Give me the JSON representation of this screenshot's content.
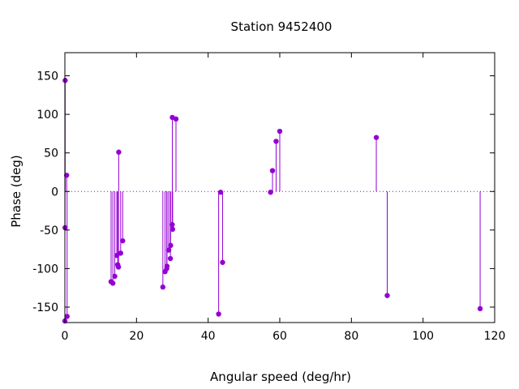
{
  "chart_data": {
    "type": "scatter",
    "style": "impulses-with-points",
    "title": "Station 9452400",
    "xlabel": "Angular speed (deg/hr)",
    "ylabel": "Phase (deg)",
    "xlim": [
      0,
      120
    ],
    "ylim": [
      -170,
      180
    ],
    "xticks": [
      0,
      20,
      40,
      60,
      80,
      100,
      120
    ],
    "yticks": [
      -150,
      -100,
      -50,
      0,
      50,
      100,
      150
    ],
    "xtick_labels": [
      "0",
      "20",
      "40",
      "60",
      "80",
      "100",
      "120"
    ],
    "ytick_labels": [
      "-150",
      "-100",
      "-50",
      "0",
      "50",
      "100",
      "150"
    ],
    "grid": false,
    "zero_line": true,
    "color": "#9400d3",
    "points": [
      {
        "x": 0.0,
        "y": -168
      },
      {
        "x": 0.04,
        "y": -47
      },
      {
        "x": 0.08,
        "y": 144
      },
      {
        "x": 0.5,
        "y": 21
      },
      {
        "x": 0.62,
        "y": -162
      },
      {
        "x": 12.9,
        "y": -117
      },
      {
        "x": 13.4,
        "y": -119
      },
      {
        "x": 13.94,
        "y": -110
      },
      {
        "x": 14.5,
        "y": -83
      },
      {
        "x": 14.76,
        "y": -95
      },
      {
        "x": 14.96,
        "y": -98
      },
      {
        "x": 15.04,
        "y": 51
      },
      {
        "x": 15.58,
        "y": -80
      },
      {
        "x": 16.14,
        "y": -64
      },
      {
        "x": 27.36,
        "y": -124
      },
      {
        "x": 27.97,
        "y": -104
      },
      {
        "x": 28.44,
        "y": -100
      },
      {
        "x": 28.51,
        "y": -97
      },
      {
        "x": 28.99,
        "y": -76
      },
      {
        "x": 29.46,
        "y": -87
      },
      {
        "x": 29.53,
        "y": -70
      },
      {
        "x": 29.96,
        "y": -43
      },
      {
        "x": 30.0,
        "y": 96
      },
      {
        "x": 30.08,
        "y": -49
      },
      {
        "x": 31.02,
        "y": 94
      },
      {
        "x": 42.93,
        "y": -159
      },
      {
        "x": 43.48,
        "y": -1
      },
      {
        "x": 44.03,
        "y": -92
      },
      {
        "x": 57.42,
        "y": -1
      },
      {
        "x": 57.97,
        "y": 27
      },
      {
        "x": 58.98,
        "y": 65
      },
      {
        "x": 60.0,
        "y": 78
      },
      {
        "x": 86.95,
        "y": 70
      },
      {
        "x": 90.0,
        "y": -135
      },
      {
        "x": 115.94,
        "y": -152
      }
    ]
  }
}
